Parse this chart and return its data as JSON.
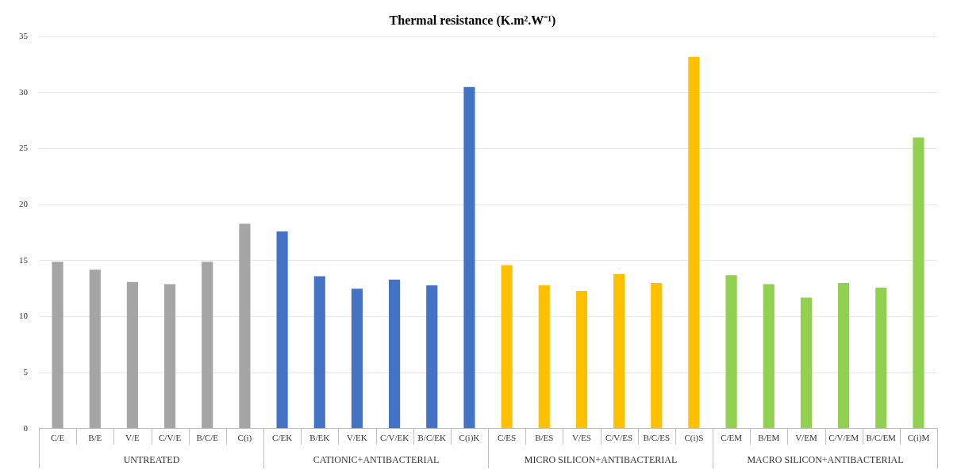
{
  "chart_data": {
    "type": "bar",
    "title": "Thermal resistance (K.m².W⁻¹)",
    "categories": [
      "C/E",
      "B/E",
      "V/E",
      "C/V/E",
      "B/C/E",
      "C(i)",
      "C/EK",
      "B/EK",
      "V/EK",
      "C/V/EK",
      "B/C/EK",
      "C(i)K",
      "C/ES",
      "B/ES",
      "V/ES",
      "C/V/ES",
      "B/C/ES",
      "C(i)S",
      "C/EM",
      "B/EM",
      "V/EM",
      "C/V/EM",
      "B/C/EM",
      "C(i)M"
    ],
    "series": [
      {
        "name": "UNTREATED",
        "color": "#a5a5a5",
        "values": [
          14.9,
          14.2,
          13.1,
          12.9,
          14.9,
          18.3,
          null,
          null,
          null,
          null,
          null,
          null,
          null,
          null,
          null,
          null,
          null,
          null,
          null,
          null,
          null,
          null,
          null,
          null
        ]
      },
      {
        "name": "CATIONIC+ANTIBACTERIAL",
        "color": "#4472c4",
        "values": [
          null,
          null,
          null,
          null,
          null,
          null,
          17.6,
          13.6,
          12.5,
          13.3,
          12.8,
          30.5,
          null,
          null,
          null,
          null,
          null,
          null,
          null,
          null,
          null,
          null,
          null,
          null
        ]
      },
      {
        "name": "MICRO SILICON+ANTIBACTERIAL",
        "color": "#ffc000",
        "values": [
          null,
          null,
          null,
          null,
          null,
          null,
          null,
          null,
          null,
          null,
          null,
          null,
          14.6,
          12.8,
          12.3,
          13.8,
          13.0,
          33.2,
          null,
          null,
          null,
          null,
          null,
          null
        ]
      },
      {
        "name": "MACRO SILICON+ANTIBACTERIAL",
        "color": "#92d050",
        "values": [
          null,
          null,
          null,
          null,
          null,
          null,
          null,
          null,
          null,
          null,
          null,
          null,
          null,
          null,
          null,
          null,
          null,
          null,
          13.7,
          12.9,
          11.7,
          13.0,
          12.6,
          26.0
        ]
      }
    ],
    "ylim": [
      0,
      35
    ],
    "yticks": [
      0,
      5,
      10,
      15,
      20,
      25,
      30,
      35
    ],
    "grid": "y",
    "legend": false
  }
}
